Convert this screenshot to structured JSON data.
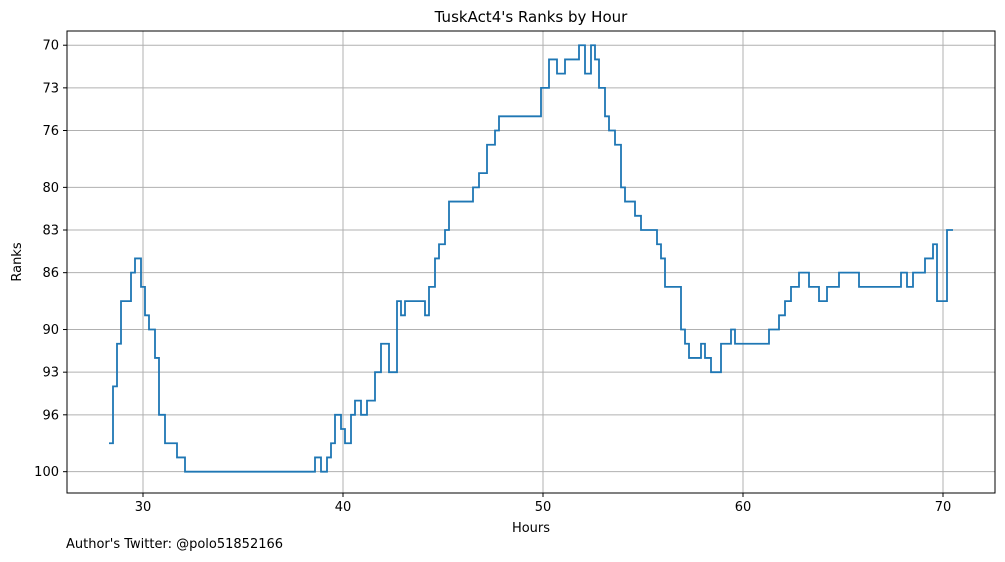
{
  "footer": {
    "credit": "Author's Twitter: @polo51852166"
  },
  "chart_data": {
    "type": "line",
    "step": "post",
    "title": "TuskAct4's Ranks by Hour",
    "xlabel": "Hours",
    "ylabel": "Ranks",
    "xlim": [
      26.2,
      72.6
    ],
    "ylim": [
      101.5,
      69.0
    ],
    "y_inverted": true,
    "grid": true,
    "xticks": [
      30,
      40,
      50,
      60,
      70
    ],
    "yticks": [
      70,
      73,
      76,
      80,
      83,
      86,
      90,
      93,
      96,
      100
    ],
    "line_color": "#1f77b4",
    "series": [
      {
        "x": [
          28.3,
          28.5,
          28.7,
          28.9,
          29.4,
          29.6,
          29.9,
          30.1,
          30.3,
          30.6,
          30.8,
          31.1,
          31.7,
          32.1,
          32.5,
          35.0,
          38.0,
          38.6,
          38.9,
          39.2,
          39.4,
          39.6,
          39.9,
          40.1,
          40.4,
          40.6,
          40.9,
          41.2,
          41.6,
          41.9,
          42.3,
          42.7,
          42.9,
          43.1,
          44.1,
          44.3,
          44.6,
          44.8,
          45.1,
          45.3,
          45.9,
          46.5,
          46.8,
          47.2,
          47.6,
          47.8,
          48.3,
          49.5,
          49.9,
          50.3,
          50.7,
          51.1,
          51.6,
          51.8,
          52.1,
          52.4,
          52.6,
          52.8,
          53.1,
          53.3,
          53.6,
          53.9,
          54.1,
          54.3,
          54.6,
          54.9,
          55.2,
          55.7,
          55.9,
          56.1,
          56.4,
          56.9,
          57.1,
          57.3,
          57.7,
          57.9,
          58.1,
          58.4,
          58.9,
          59.4,
          59.6,
          60.3,
          61.1,
          61.3,
          61.8,
          62.1,
          62.4,
          62.8,
          63.3,
          63.8,
          64.2,
          64.8,
          65.2,
          65.8,
          67.5,
          67.9,
          68.2,
          68.5,
          69.1,
          69.5,
          69.7,
          70.2,
          70.5
        ],
        "y": [
          98,
          94,
          91,
          88,
          86,
          85,
          87,
          89,
          90,
          92,
          96,
          98,
          99,
          100,
          100,
          100,
          100,
          99,
          100,
          99,
          98,
          96,
          97,
          98,
          96,
          95,
          96,
          95,
          93,
          91,
          93,
          88,
          89,
          88,
          89,
          87,
          85,
          84,
          83,
          81,
          81,
          80,
          79,
          77,
          76,
          75,
          75,
          75,
          73,
          71,
          72,
          71,
          71,
          70,
          72,
          70,
          71,
          73,
          75,
          76,
          77,
          80,
          81,
          81,
          82,
          83,
          83,
          84,
          85,
          87,
          87,
          90,
          91,
          92,
          92,
          91,
          92,
          93,
          91,
          90,
          91,
          91,
          91,
          90,
          89,
          88,
          87,
          86,
          87,
          88,
          87,
          86,
          86,
          87,
          87,
          86,
          87,
          86,
          85,
          84,
          88,
          83,
          83
        ]
      }
    ]
  }
}
